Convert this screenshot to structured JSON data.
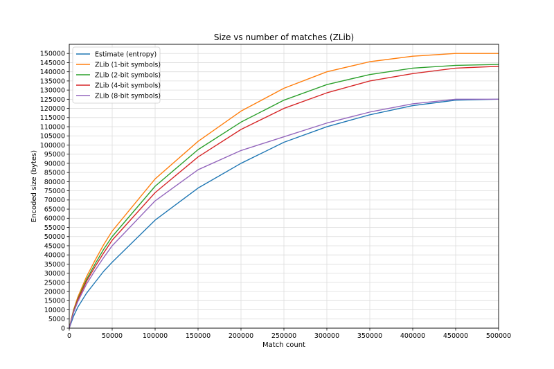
{
  "chart_data": {
    "type": "line",
    "title": "Size vs number of matches (ZLib)",
    "xlabel": "Match count",
    "ylabel": "Encoded size (bytes)",
    "xlim": [
      0,
      500000
    ],
    "ylim": [
      0,
      155000
    ],
    "xticks": [
      0,
      50000,
      100000,
      150000,
      200000,
      250000,
      300000,
      350000,
      400000,
      450000,
      500000
    ],
    "yticks": [
      0,
      5000,
      10000,
      15000,
      20000,
      25000,
      30000,
      35000,
      40000,
      45000,
      50000,
      55000,
      60000,
      65000,
      70000,
      75000,
      80000,
      85000,
      90000,
      95000,
      100000,
      105000,
      110000,
      115000,
      120000,
      125000,
      130000,
      135000,
      140000,
      145000,
      150000
    ],
    "grid": true,
    "legend_position": "top-left",
    "x": [
      0,
      5000,
      10000,
      20000,
      30000,
      40000,
      50000,
      100000,
      150000,
      200000,
      250000,
      300000,
      350000,
      400000,
      450000,
      500000
    ],
    "series": [
      {
        "name": "Estimate (entropy)",
        "color": "#1f77b4",
        "values": [
          0,
          6500,
          11500,
          19000,
          25000,
          31000,
          36000,
          59000,
          76500,
          90000,
          101500,
          110000,
          116500,
          121500,
          124500,
          125000
        ]
      },
      {
        "name": "ZLib (1-bit symbols)",
        "color": "#ff7f0e",
        "values": [
          0,
          10000,
          17000,
          28000,
          37000,
          45500,
          53000,
          81500,
          102000,
          118500,
          131000,
          140000,
          145500,
          148500,
          150000,
          150000
        ]
      },
      {
        "name": "ZLib (2-bit symbols)",
        "color": "#2ca02c",
        "values": [
          0,
          9500,
          16000,
          26500,
          35000,
          43000,
          50000,
          77500,
          97500,
          112500,
          124500,
          133000,
          138500,
          142000,
          143500,
          144000
        ]
      },
      {
        "name": "ZLib (4-bit symbols)",
        "color": "#d62728",
        "values": [
          0,
          9000,
          15500,
          25500,
          33500,
          41000,
          48000,
          74000,
          93500,
          108500,
          120000,
          128500,
          135000,
          139000,
          142000,
          143000
        ]
      },
      {
        "name": "ZLib (8-bit symbols)",
        "color": "#9467bd",
        "values": [
          0,
          8500,
          14500,
          24000,
          31500,
          38500,
          45000,
          69500,
          86500,
          97000,
          104500,
          112000,
          118000,
          122500,
          125000,
          125000
        ]
      }
    ]
  }
}
